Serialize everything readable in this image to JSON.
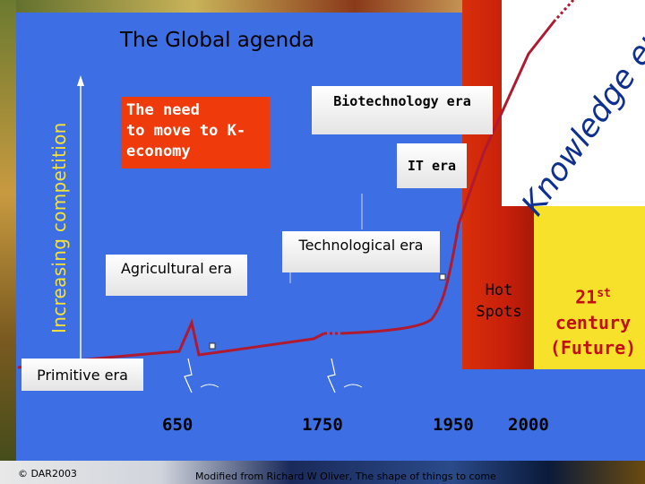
{
  "title": "The Global agenda",
  "y_axis_label": "Increasing competition",
  "need_box": [
    "The need",
    "to move to K-",
    "economy"
  ],
  "eras": {
    "primitive": "Primitive era",
    "agricultural": "Agricultural era",
    "technological": "Technological era",
    "it": "IT era",
    "biotech": "Biotechnology  era",
    "knowledge": "Knowledge era"
  },
  "hot_spots": [
    "Hot",
    "Spots"
  ],
  "century": {
    "number": "21",
    "suffix": "st",
    "line2": "century",
    "line3": "(Future)"
  },
  "years": [
    "650",
    "1750",
    "1950",
    "2000"
  ],
  "copyright": "© DAR2003",
  "credit": "Modified from Richard W Oliver, The shape of things to come",
  "colors": {
    "panel": "#3d6ee3",
    "hotspot": "#d8300a",
    "future": "#f7e12a",
    "curve": "#b01a30",
    "need_box": "#ef3b0c"
  }
}
